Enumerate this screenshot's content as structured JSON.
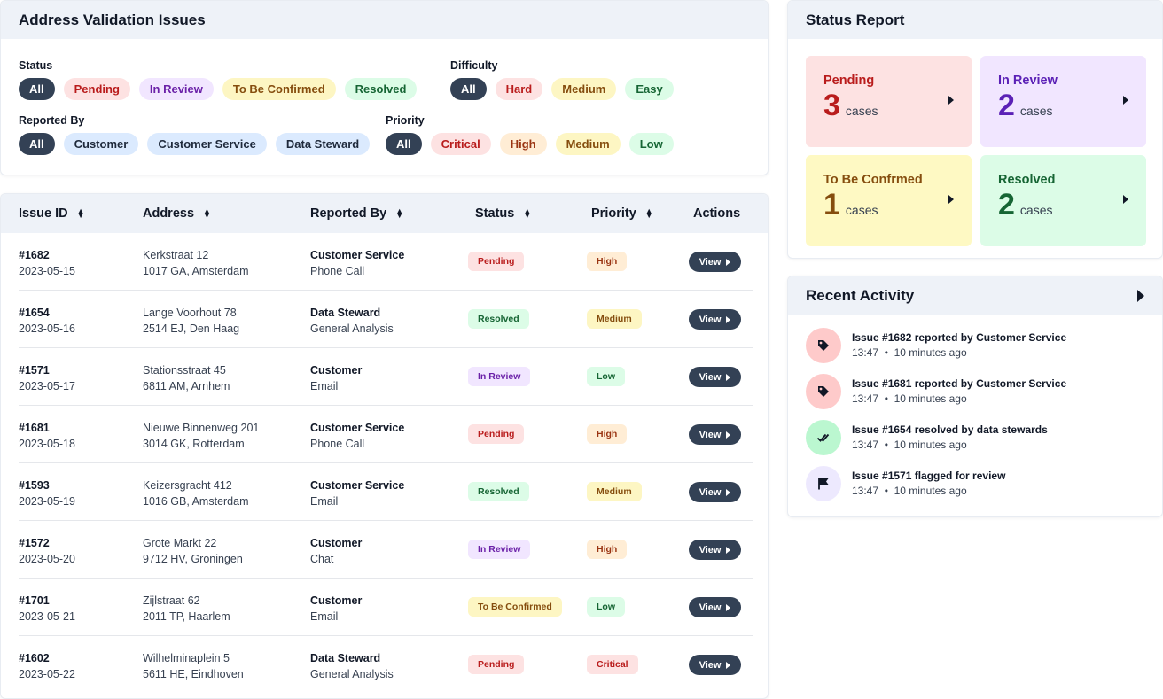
{
  "filters": {
    "title": "Address Validation Issues",
    "status": {
      "label": "Status",
      "chips": [
        {
          "label": "All",
          "bg": "#334155",
          "fg": "#ffffff",
          "selected": true
        },
        {
          "label": "Pending",
          "bg": "#fde2e2",
          "fg": "#b91c1c"
        },
        {
          "label": "In Review",
          "bg": "#f1e6ff",
          "fg": "#6b21a8"
        },
        {
          "label": "To Be Confirmed",
          "bg": "#fdf6c3",
          "fg": "#854d0e"
        },
        {
          "label": "Resolved",
          "bg": "#dcfce7",
          "fg": "#166534"
        }
      ]
    },
    "difficulty": {
      "label": "Difficulty",
      "chips": [
        {
          "label": "All",
          "bg": "#334155",
          "fg": "#ffffff",
          "selected": true
        },
        {
          "label": "Hard",
          "bg": "#fde2e2",
          "fg": "#b91c1c"
        },
        {
          "label": "Medium",
          "bg": "#fdf6c3",
          "fg": "#854d0e"
        },
        {
          "label": "Easy",
          "bg": "#dcfce7",
          "fg": "#166534"
        }
      ]
    },
    "reported_by": {
      "label": "Reported By",
      "chips": [
        {
          "label": "All",
          "bg": "#334155",
          "fg": "#ffffff",
          "selected": true
        },
        {
          "label": "Customer",
          "bg": "#dbeafe",
          "fg": "#1e293b"
        },
        {
          "label": "Customer Service",
          "bg": "#dbeafe",
          "fg": "#1e293b"
        },
        {
          "label": "Data Steward",
          "bg": "#dbeafe",
          "fg": "#1e293b"
        }
      ]
    },
    "priority": {
      "label": "Priority",
      "chips": [
        {
          "label": "All",
          "bg": "#334155",
          "fg": "#ffffff",
          "selected": true
        },
        {
          "label": "Critical",
          "bg": "#fde2e2",
          "fg": "#b91c1c"
        },
        {
          "label": "High",
          "bg": "#ffedd5",
          "fg": "#9a3412"
        },
        {
          "label": "Medium",
          "bg": "#fdf6c3",
          "fg": "#854d0e"
        },
        {
          "label": "Low",
          "bg": "#dcfce7",
          "fg": "#166534"
        }
      ]
    }
  },
  "table": {
    "headers": {
      "id": "Issue ID",
      "address": "Address",
      "reported": "Reported By",
      "status": "Status",
      "priority": "Priority",
      "actions": "Actions"
    },
    "view_label": "View",
    "rows": [
      {
        "id": "#1682",
        "date": "2023-05-15",
        "street": "Kerkstraat 12",
        "city": "1017 GA, Amsterdam",
        "reporter": "Customer Service",
        "channel": "Phone Call",
        "status": "Pending",
        "priority": "High"
      },
      {
        "id": "#1654",
        "date": "2023-05-16",
        "street": "Lange Voorhout 78",
        "city": "2514 EJ, Den Haag",
        "reporter": "Data Steward",
        "channel": "General Analysis",
        "status": "Resolved",
        "priority": "Medium"
      },
      {
        "id": "#1571",
        "date": "2023-05-17",
        "street": "Stationsstraat 45",
        "city": "6811 AM, Arnhem",
        "reporter": "Customer",
        "channel": "Email",
        "status": "In Review",
        "priority": "Low"
      },
      {
        "id": "#1681",
        "date": "2023-05-18",
        "street": "Nieuwe Binnenweg 201",
        "city": "3014 GK, Rotterdam",
        "reporter": "Customer Service",
        "channel": "Phone Call",
        "status": "Pending",
        "priority": "High"
      },
      {
        "id": "#1593",
        "date": "2023-05-19",
        "street": "Keizersgracht 412",
        "city": "1016 GB, Amsterdam",
        "reporter": "Customer Service",
        "channel": "Email",
        "status": "Resolved",
        "priority": "Medium"
      },
      {
        "id": "#1572",
        "date": "2023-05-20",
        "street": "Grote Markt 22",
        "city": "9712 HV, Groningen",
        "reporter": "Customer",
        "channel": "Chat",
        "status": "In Review",
        "priority": "High"
      },
      {
        "id": "#1701",
        "date": "2023-05-21",
        "street": "Zijlstraat 62",
        "city": "2011 TP, Haarlem",
        "reporter": "Customer",
        "channel": "Email",
        "status": "To Be Confirmed",
        "priority": "Low"
      },
      {
        "id": "#1602",
        "date": "2023-05-22",
        "street": "Wilhelminaplein 5",
        "city": "5611 HE, Eindhoven",
        "reporter": "Data Steward",
        "channel": "General Analysis",
        "status": "Pending",
        "priority": "Critical"
      }
    ]
  },
  "badge_colors": {
    "Pending": {
      "bg": "#fde2e2",
      "fg": "#b91c1c"
    },
    "Resolved": {
      "bg": "#dcfce7",
      "fg": "#166534"
    },
    "In Review": {
      "bg": "#f1e6ff",
      "fg": "#6b21a8"
    },
    "To Be Confirmed": {
      "bg": "#fdf6c3",
      "fg": "#854d0e"
    },
    "High": {
      "bg": "#ffedd5",
      "fg": "#9a3412"
    },
    "Medium": {
      "bg": "#fdf6c3",
      "fg": "#854d0e"
    },
    "Low": {
      "bg": "#dcfce7",
      "fg": "#166534"
    },
    "Critical": {
      "bg": "#fde2e2",
      "fg": "#b91c1c"
    }
  },
  "status_report": {
    "title": "Status Report",
    "cards": [
      {
        "label": "Pending",
        "count": "3",
        "unit": "cases",
        "bg": "#fde2e2",
        "fg": "#b91c1c"
      },
      {
        "label": "In Review",
        "count": "2",
        "unit": "cases",
        "bg": "#f1e6ff",
        "fg": "#5b21b6"
      },
      {
        "label": "To Be Confrmed",
        "count": "1",
        "unit": "cases",
        "bg": "#fef9c3",
        "fg": "#854d0e"
      },
      {
        "label": "Resolved",
        "count": "2",
        "unit": "cases",
        "bg": "#dcfce7",
        "fg": "#166534"
      }
    ]
  },
  "activity": {
    "title": "Recent Activity",
    "items": [
      {
        "title": "Issue #1682 reported by Customer Service",
        "time": "13:47",
        "ago": "10 minutes ago",
        "icon": "tag-icon",
        "bg": "#fecaca"
      },
      {
        "title": "Issue #1681 reported by Customer Service",
        "time": "13:47",
        "ago": "10 minutes ago",
        "icon": "tag-icon",
        "bg": "#fecaca"
      },
      {
        "title": "Issue #1654 resolved by data stewards",
        "time": "13:47",
        "ago": "10 minutes ago",
        "icon": "double-check-icon",
        "bg": "#bbf7d0"
      },
      {
        "title": "Issue #1571 flagged for review",
        "time": "13:47",
        "ago": "10 minutes ago",
        "icon": "flag-icon",
        "bg": "#ede9fe"
      }
    ]
  }
}
